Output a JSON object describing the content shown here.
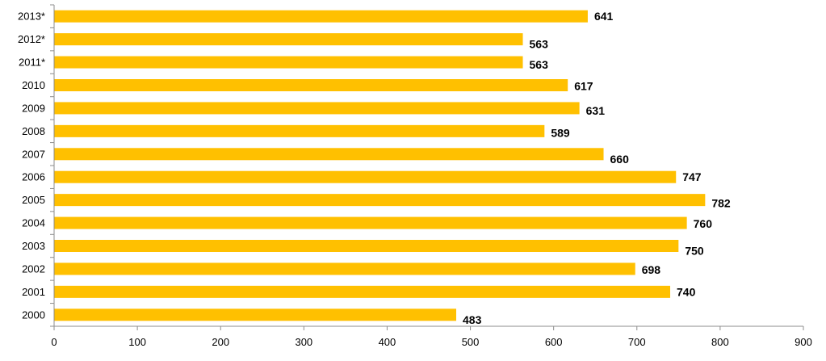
{
  "chart_data": {
    "type": "bar",
    "orientation": "horizontal",
    "categories": [
      "2013*",
      "2012*",
      "2011*",
      "2010",
      "2009",
      "2008",
      "2007",
      "2006",
      "2005",
      "2004",
      "2003",
      "2002",
      "2001",
      "2000"
    ],
    "values": [
      641,
      563,
      563,
      617,
      631,
      589,
      660,
      747,
      782,
      760,
      750,
      698,
      740,
      483
    ],
    "value_labels": [
      "641",
      "563",
      "563",
      "617",
      "631",
      "589",
      "660",
      "747",
      "782",
      "760",
      "750",
      "698",
      "740",
      "483"
    ],
    "x_ticks": [
      "0",
      "100",
      "200",
      "300",
      "400",
      "500",
      "600",
      "700",
      "800",
      "900"
    ],
    "xlim": [
      0,
      900
    ],
    "grid": false,
    "legend": "none",
    "title": "",
    "xlabel": "",
    "ylabel": ""
  },
  "colors": {
    "bar": "#FFC000",
    "axis": "#8C8C8C",
    "text": "#000000"
  }
}
